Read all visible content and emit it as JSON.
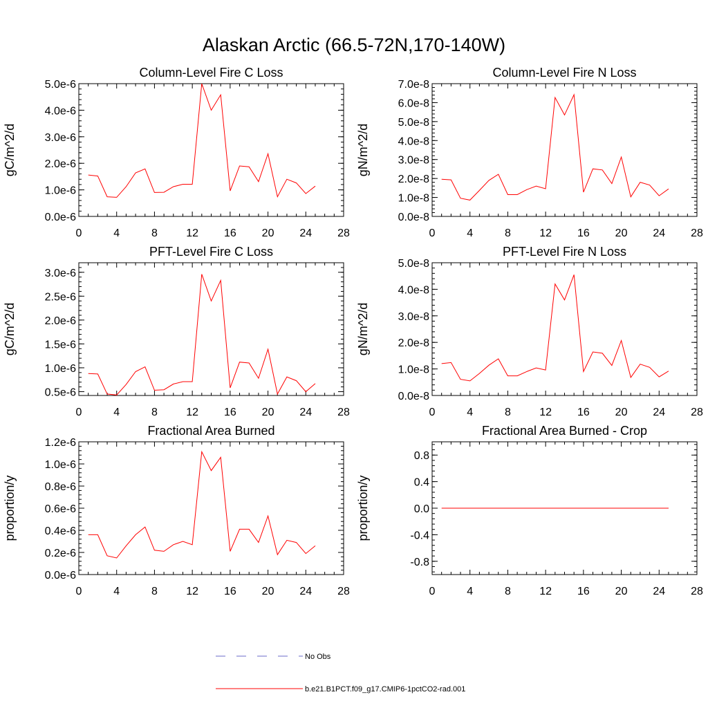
{
  "figure": {
    "title": "Alaskan Arctic (66.5-72N,170-140W)",
    "series_color": "#ff0000",
    "obs_color": "#6a6ac8"
  },
  "legend": {
    "items": [
      {
        "label": "No Obs",
        "style": "dashed",
        "color": "#6a6ac8"
      },
      {
        "label": "b.e21.B1PCT.f09_g17.CMIP6-1pctCO2-rad.001",
        "style": "solid",
        "color": "#ff0000"
      }
    ]
  },
  "chart_data": [
    {
      "type": "line",
      "title": "Column-Level Fire C Loss",
      "xlabel": "",
      "ylabel": "gC/m^2/d",
      "xlim": [
        0,
        28
      ],
      "ylim": [
        0,
        5e-06
      ],
      "xticks": [
        "0",
        "4",
        "8",
        "12",
        "16",
        "20",
        "24",
        "28"
      ],
      "yticks": [
        {
          "v": 0.0,
          "label": "0.0e-6"
        },
        {
          "v": 1e-06,
          "label": "1.0e-6"
        },
        {
          "v": 2e-06,
          "label": "2.0e-6"
        },
        {
          "v": 3e-06,
          "label": "3.0e-6"
        },
        {
          "v": 4e-06,
          "label": "4.0e-6"
        },
        {
          "v": 5e-06,
          "label": "5.0e-6"
        }
      ],
      "series": [
        {
          "x": [
            1,
            2,
            3,
            4,
            5,
            6,
            7,
            8,
            9,
            10,
            11,
            12,
            13,
            14,
            15,
            16,
            17,
            18,
            19,
            20,
            21,
            22,
            23,
            24,
            25
          ],
          "values": [
            1.56e-06,
            1.52e-06,
            7.4e-07,
            7.2e-07,
            1.12e-06,
            1.64e-06,
            1.79e-06,
            9e-07,
            9.1e-07,
            1.12e-06,
            1.21e-06,
            1.21e-06,
            5e-06,
            4e-06,
            4.58e-06,
            9.6e-07,
            1.9e-06,
            1.87e-06,
            1.31e-06,
            2.36e-06,
            7.4e-07,
            1.4e-06,
            1.26e-06,
            8.6e-07,
            1.14e-06
          ]
        }
      ]
    },
    {
      "type": "line",
      "title": "Column-Level Fire N Loss",
      "xlabel": "",
      "ylabel": "gN/m^2/d",
      "xlim": [
        0,
        28
      ],
      "ylim": [
        0,
        7e-08
      ],
      "xticks": [
        "0",
        "4",
        "8",
        "12",
        "16",
        "20",
        "24",
        "28"
      ],
      "yticks": [
        {
          "v": 0.0,
          "label": "0.0e-8"
        },
        {
          "v": 1e-08,
          "label": "1.0e-8"
        },
        {
          "v": 2e-08,
          "label": "2.0e-8"
        },
        {
          "v": 3e-08,
          "label": "3.0e-8"
        },
        {
          "v": 4e-08,
          "label": "4.0e-8"
        },
        {
          "v": 5e-08,
          "label": "5.0e-8"
        },
        {
          "v": 6e-08,
          "label": "6.0e-8"
        },
        {
          "v": 7e-08,
          "label": "7.0e-8"
        }
      ],
      "series": [
        {
          "x": [
            1,
            2,
            3,
            4,
            5,
            6,
            7,
            8,
            9,
            10,
            11,
            12,
            13,
            14,
            15,
            16,
            17,
            18,
            19,
            20,
            21,
            22,
            23,
            24,
            25
          ],
          "values": [
            1.96e-08,
            1.93e-08,
            9.6e-09,
            8.6e-09,
            1.37e-08,
            1.9e-08,
            2.22e-08,
            1.15e-08,
            1.15e-08,
            1.41e-08,
            1.6e-08,
            1.46e-08,
            6.27e-08,
            5.35e-08,
            6.42e-08,
            1.28e-08,
            2.51e-08,
            2.45e-08,
            1.73e-08,
            3.13e-08,
            1.03e-08,
            1.8e-08,
            1.65e-08,
            1.09e-08,
            1.45e-08
          ]
        }
      ]
    },
    {
      "type": "line",
      "title": "PFT-Level Fire C Loss",
      "xlabel": "",
      "ylabel": "gC/m^2/d",
      "xlim": [
        0,
        28
      ],
      "ylim": [
        4.2e-07,
        3.2e-06
      ],
      "xticks": [
        "0",
        "4",
        "8",
        "12",
        "16",
        "20",
        "24",
        "28"
      ],
      "yticks": [
        {
          "v": 5e-07,
          "label": "0.5e-6"
        },
        {
          "v": 1e-06,
          "label": "1.0e-6"
        },
        {
          "v": 1.5e-06,
          "label": "1.5e-6"
        },
        {
          "v": 2e-06,
          "label": "2.0e-6"
        },
        {
          "v": 2.5e-06,
          "label": "2.5e-6"
        },
        {
          "v": 3e-06,
          "label": "3.0e-6"
        }
      ],
      "series": [
        {
          "x": [
            1,
            2,
            3,
            4,
            5,
            6,
            7,
            8,
            9,
            10,
            11,
            12,
            13,
            14,
            15,
            16,
            17,
            18,
            19,
            20,
            21,
            22,
            23,
            24,
            25
          ],
          "values": [
            8.8e-07,
            8.7e-07,
            4.5e-07,
            4.3e-07,
            6.5e-07,
            9.2e-07,
            1.02e-06,
            5.3e-07,
            5.4e-07,
            6.6e-07,
            7.1e-07,
            7.1e-07,
            2.96e-06,
            2.4e-06,
            2.83e-06,
            5.8e-07,
            1.12e-06,
            1.1e-06,
            7.8e-07,
            1.39e-06,
            4.5e-07,
            8.1e-07,
            7.3e-07,
            5e-07,
            6.7e-07
          ]
        }
      ]
    },
    {
      "type": "line",
      "title": "PFT-Level Fire N Loss",
      "xlabel": "",
      "ylabel": "gN/m^2/d",
      "xlim": [
        0,
        28
      ],
      "ylim": [
        0,
        5e-08
      ],
      "xticks": [
        "0",
        "4",
        "8",
        "12",
        "16",
        "20",
        "24",
        "28"
      ],
      "yticks": [
        {
          "v": 0.0,
          "label": "0.0e-8"
        },
        {
          "v": 1e-08,
          "label": "1.0e-8"
        },
        {
          "v": 2e-08,
          "label": "2.0e-8"
        },
        {
          "v": 3e-08,
          "label": "3.0e-8"
        },
        {
          "v": 4e-08,
          "label": "4.0e-8"
        },
        {
          "v": 5e-08,
          "label": "5.0e-8"
        }
      ],
      "series": [
        {
          "x": [
            1,
            2,
            3,
            4,
            5,
            6,
            7,
            8,
            9,
            10,
            11,
            12,
            13,
            14,
            15,
            16,
            17,
            18,
            19,
            20,
            21,
            22,
            23,
            24,
            25
          ],
          "values": [
            1.2e-08,
            1.24e-08,
            6.1e-09,
            5.5e-09,
            8.3e-09,
            1.14e-08,
            1.38e-08,
            7.4e-09,
            7.4e-09,
            9e-09,
            1.04e-08,
            9.6e-09,
            4.2e-08,
            3.6e-08,
            4.55e-08,
            9e-09,
            1.64e-08,
            1.59e-08,
            1.13e-08,
            2.07e-08,
            6.8e-09,
            1.18e-08,
            1.06e-08,
            7e-09,
            9.2e-09
          ]
        }
      ]
    },
    {
      "type": "line",
      "title": "Fractional Area Burned",
      "xlabel": "",
      "ylabel": "proportion/y",
      "xlim": [
        0,
        28
      ],
      "ylim": [
        0,
        1.2e-06
      ],
      "xticks": [
        "0",
        "4",
        "8",
        "12",
        "16",
        "20",
        "24",
        "28"
      ],
      "yticks": [
        {
          "v": 0.0,
          "label": "0.0e-6"
        },
        {
          "v": 2e-07,
          "label": "0.2e-6"
        },
        {
          "v": 4e-07,
          "label": "0.4e-6"
        },
        {
          "v": 6e-07,
          "label": "0.6e-6"
        },
        {
          "v": 8e-07,
          "label": "0.8e-6"
        },
        {
          "v": 1e-06,
          "label": "1.0e-6"
        },
        {
          "v": 1.2e-06,
          "label": "1.2e-6"
        }
      ],
      "series": [
        {
          "x": [
            1,
            2,
            3,
            4,
            5,
            6,
            7,
            8,
            9,
            10,
            11,
            12,
            13,
            14,
            15,
            16,
            17,
            18,
            19,
            20,
            21,
            22,
            23,
            24,
            25
          ],
          "values": [
            3.6e-07,
            3.6e-07,
            1.7e-07,
            1.5e-07,
            2.6e-07,
            3.6e-07,
            4.3e-07,
            2.2e-07,
            2.1e-07,
            2.7e-07,
            3e-07,
            2.7e-07,
            1.11e-06,
            9.4e-07,
            1.06e-06,
            2.1e-07,
            4.1e-07,
            4.1e-07,
            2.9e-07,
            5.3e-07,
            1.8e-07,
            3.1e-07,
            2.9e-07,
            1.9e-07,
            2.6e-07
          ]
        }
      ]
    },
    {
      "type": "line",
      "title": "Fractional Area Burned - Crop",
      "xlabel": "",
      "ylabel": "proportion/y",
      "xlim": [
        0,
        28
      ],
      "ylim": [
        -1.0,
        1.0
      ],
      "xticks": [
        "0",
        "4",
        "8",
        "12",
        "16",
        "20",
        "24",
        "28"
      ],
      "yticks": [
        {
          "v": -0.8,
          "label": "-0.8"
        },
        {
          "v": -0.4,
          "label": "-0.4"
        },
        {
          "v": 0.0,
          "label": "0.0"
        },
        {
          "v": 0.4,
          "label": "0.4"
        },
        {
          "v": 0.8,
          "label": "0.8"
        }
      ],
      "series": [
        {
          "x": [
            1,
            2,
            3,
            4,
            5,
            6,
            7,
            8,
            9,
            10,
            11,
            12,
            13,
            14,
            15,
            16,
            17,
            18,
            19,
            20,
            21,
            22,
            23,
            24,
            25
          ],
          "values": [
            0,
            0,
            0,
            0,
            0,
            0,
            0,
            0,
            0,
            0,
            0,
            0,
            0,
            0,
            0,
            0,
            0,
            0,
            0,
            0,
            0,
            0,
            0,
            0,
            0
          ]
        }
      ]
    }
  ]
}
